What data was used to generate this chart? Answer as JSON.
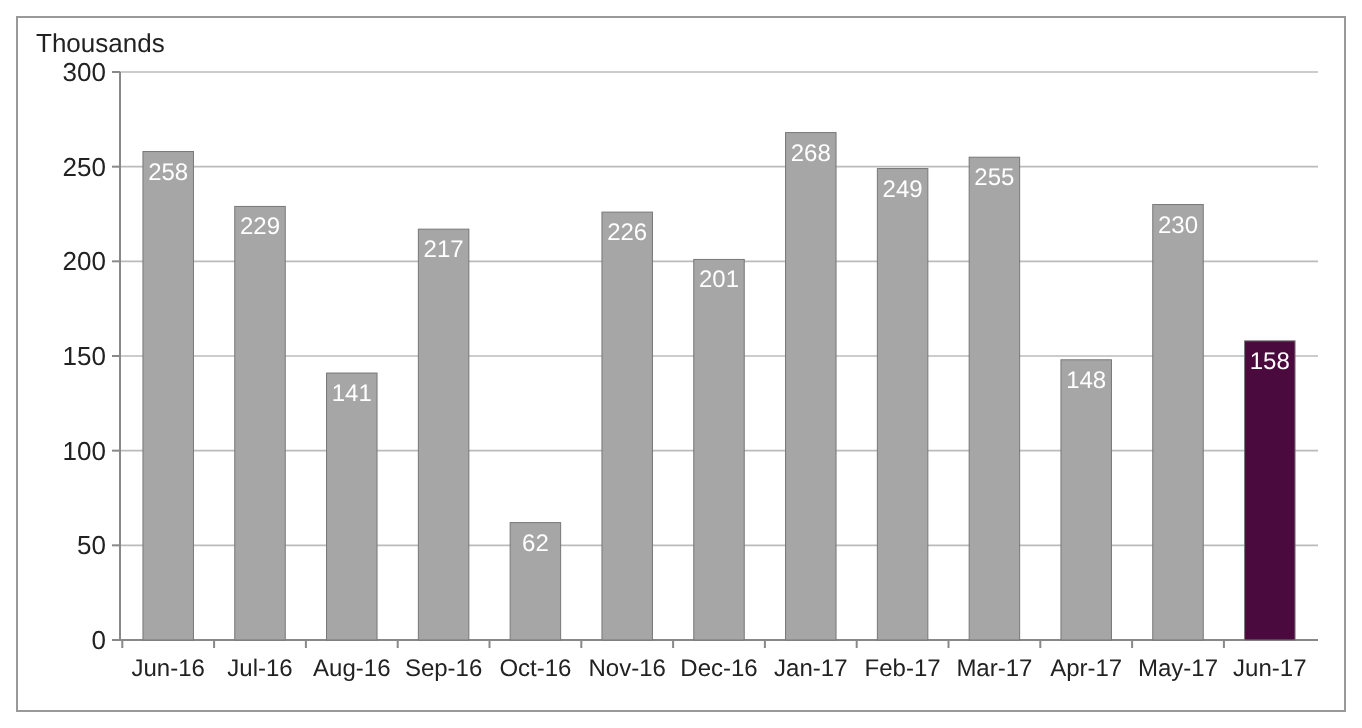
{
  "chart_data": {
    "type": "bar",
    "ylabel": "Thousands",
    "categories": [
      "Jun-16",
      "Jul-16",
      "Aug-16",
      "Sep-16",
      "Oct-16",
      "Nov-16",
      "Dec-16",
      "Jan-17",
      "Feb-17",
      "Mar-17",
      "Apr-17",
      "May-17",
      "Jun-17"
    ],
    "values": [
      258,
      229,
      141,
      217,
      62,
      226,
      201,
      268,
      249,
      255,
      148,
      230,
      158
    ],
    "colors": [
      "#a6a6a6",
      "#a6a6a6",
      "#a6a6a6",
      "#a6a6a6",
      "#a6a6a6",
      "#a6a6a6",
      "#a6a6a6",
      "#a6a6a6",
      "#a6a6a6",
      "#a6a6a6",
      "#a6a6a6",
      "#a6a6a6",
      "#4b0a3e"
    ],
    "ylim": [
      0,
      300
    ],
    "yticks": [
      0,
      50,
      100,
      150,
      200,
      250,
      300
    ],
    "grid": "y",
    "data_labels": true
  }
}
